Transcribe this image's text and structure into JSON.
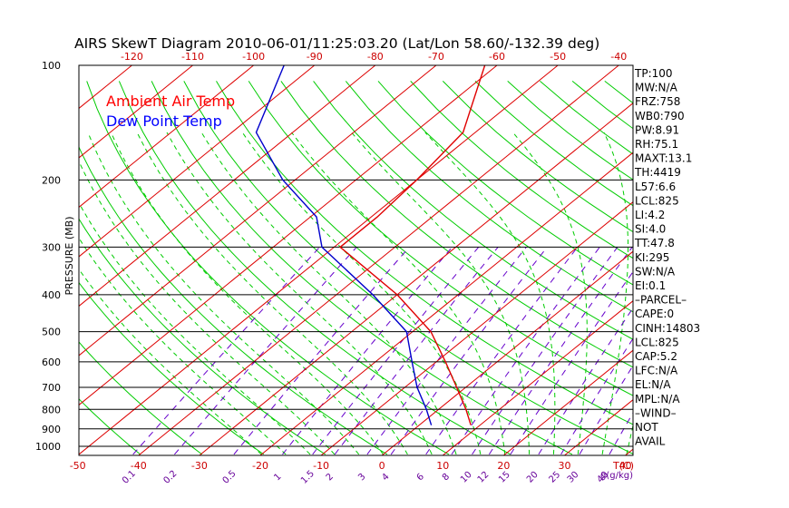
{
  "chart_data": {
    "type": "line",
    "title": "AIRS SkewT Diagram 2010-06-01/11:25:03.20 (Lat/Lon 58.60/-132.39 deg)",
    "ylabel": "PRESSURE (MB)",
    "xlabel": "T(C)",
    "mixing_ratio_label": "g(g/kg)",
    "y_scale": "log",
    "y_reversed": true,
    "ylim": [
      1050,
      100
    ],
    "pressure_ticks": [
      100,
      200,
      300,
      400,
      500,
      600,
      700,
      800,
      900,
      1000
    ],
    "bottom_temp_ticks": [
      -50,
      -40,
      -30,
      -20,
      -10,
      0,
      10,
      20,
      30,
      40
    ],
    "top_temp_ticks": [
      -120,
      -110,
      -100,
      -90,
      -80,
      -70,
      -60,
      -50,
      -40
    ],
    "mixing_ratio_ticks": [
      "0.1",
      "0.2",
      "0.5",
      "1",
      "1.5",
      "2",
      "3",
      "4",
      "6",
      "8",
      "10",
      "12",
      "15",
      "20",
      "25",
      "30",
      "40"
    ],
    "legend": {
      "placement": "top-left",
      "items": [
        {
          "name": "Ambient Air Temp",
          "color": "#ff0000"
        },
        {
          "name": "Dew Point Temp",
          "color": "#0000ff"
        }
      ]
    },
    "series": [
      {
        "name": "Ambient Air Temp",
        "color": "#e00000",
        "points": [
          {
            "p": 880,
            "t": 8.5
          },
          {
            "p": 800,
            "t": 4.5
          },
          {
            "p": 700,
            "t": -1.5
          },
          {
            "p": 600,
            "t": -8.5
          },
          {
            "p": 500,
            "t": -17
          },
          {
            "p": 400,
            "t": -30
          },
          {
            "p": 300,
            "t": -49
          },
          {
            "p": 250,
            "t": -49
          },
          {
            "p": 200,
            "t": -50
          },
          {
            "p": 150,
            "t": -52
          },
          {
            "p": 100,
            "t": -62
          }
        ]
      },
      {
        "name": "Dew Point Temp",
        "color": "#0000cc",
        "points": [
          {
            "p": 880,
            "t": 2
          },
          {
            "p": 800,
            "t": -2
          },
          {
            "p": 700,
            "t": -8
          },
          {
            "p": 600,
            "t": -14
          },
          {
            "p": 500,
            "t": -21
          },
          {
            "p": 400,
            "t": -34
          },
          {
            "p": 300,
            "t": -52
          },
          {
            "p": 250,
            "t": -59
          },
          {
            "p": 200,
            "t": -72
          },
          {
            "p": 150,
            "t": -86
          },
          {
            "p": 100,
            "t": -95
          }
        ]
      }
    ],
    "colors": {
      "isotherm": "#dd0000",
      "dry_adiabat": "#00cc00",
      "moist_adiabat": "#00cc00",
      "mixing_ratio": "#6600cc",
      "isobar": "#000000",
      "axis_text": "#000000",
      "temp_tick_text": "#cc0000",
      "mixing_text": "#660099"
    }
  },
  "stats": [
    "TP:100",
    "MW:N/A",
    "FRZ:758",
    "WB0:790",
    "PW:8.91",
    "RH:75.1",
    "MAXT:13.1",
    "TH:4419",
    "L57:6.6",
    "LCL:825",
    "LI:4.2",
    "SI:4.0",
    "TT:47.8",
    "KI:295",
    "SW:N/A",
    "EI:0.1",
    "–PARCEL–",
    "CAPE:0",
    "CINH:14803",
    "LCL:825",
    "CAP:5.2",
    "LFC:N/A",
    "EL:N/A",
    "MPL:N/A",
    "–WIND–",
    "NOT",
    "AVAIL"
  ]
}
